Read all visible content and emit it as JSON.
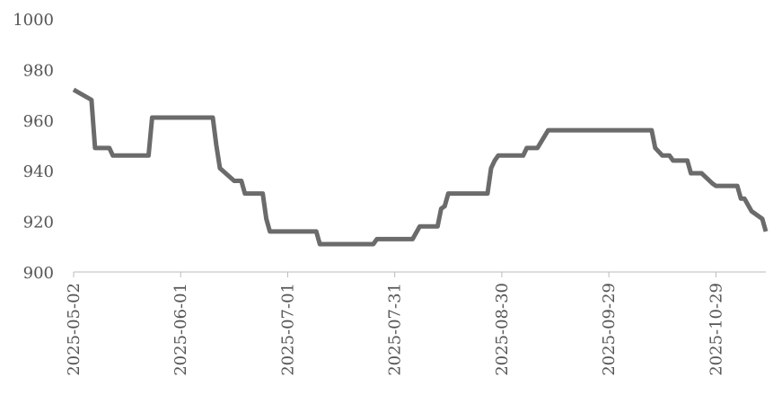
{
  "chart_data": {
    "type": "line",
    "x": [
      "2025-05-02",
      "2025-05-07",
      "2025-05-08",
      "2025-05-12",
      "2025-05-13",
      "2025-05-23",
      "2025-05-24",
      "2025-06-10",
      "2025-06-11",
      "2025-06-12",
      "2025-06-16",
      "2025-06-18",
      "2025-06-19",
      "2025-06-24",
      "2025-06-25",
      "2025-06-26",
      "2025-07-09",
      "2025-07-10",
      "2025-07-25",
      "2025-07-26",
      "2025-08-05",
      "2025-08-07",
      "2025-08-12",
      "2025-08-13",
      "2025-08-14",
      "2025-08-15",
      "2025-08-26",
      "2025-08-27",
      "2025-08-28",
      "2025-08-29",
      "2025-09-05",
      "2025-09-06",
      "2025-09-09",
      "2025-09-12",
      "2025-10-11",
      "2025-10-12",
      "2025-10-14",
      "2025-10-16",
      "2025-10-17",
      "2025-10-21",
      "2025-10-22",
      "2025-10-25",
      "2025-10-28",
      "2025-10-29",
      "2025-11-04",
      "2025-11-05",
      "2025-11-06",
      "2025-11-08",
      "2025-11-11",
      "2025-11-12"
    ],
    "values": [
      972,
      968,
      949,
      949,
      946,
      946,
      961,
      961,
      950,
      941,
      936,
      936,
      931,
      931,
      921,
      916,
      916,
      911,
      911,
      913,
      913,
      918,
      918,
      925,
      926,
      931,
      931,
      941,
      944,
      946,
      946,
      949,
      949,
      956,
      956,
      949,
      946,
      946,
      944,
      944,
      939,
      939,
      935,
      934,
      934,
      929,
      929,
      924,
      921,
      916
    ],
    "color": "#6b6b6b",
    "xlim": [
      "2025-05-02",
      "2025-11-12"
    ],
    "xticks": [
      "2025-05-02",
      "2025-06-01",
      "2025-07-01",
      "2025-07-31",
      "2025-08-30",
      "2025-09-29",
      "2025-10-29"
    ],
    "ylim": [
      900,
      1000
    ],
    "yticks": [
      900,
      920,
      940,
      960,
      980,
      1000
    ],
    "grid": false
  }
}
